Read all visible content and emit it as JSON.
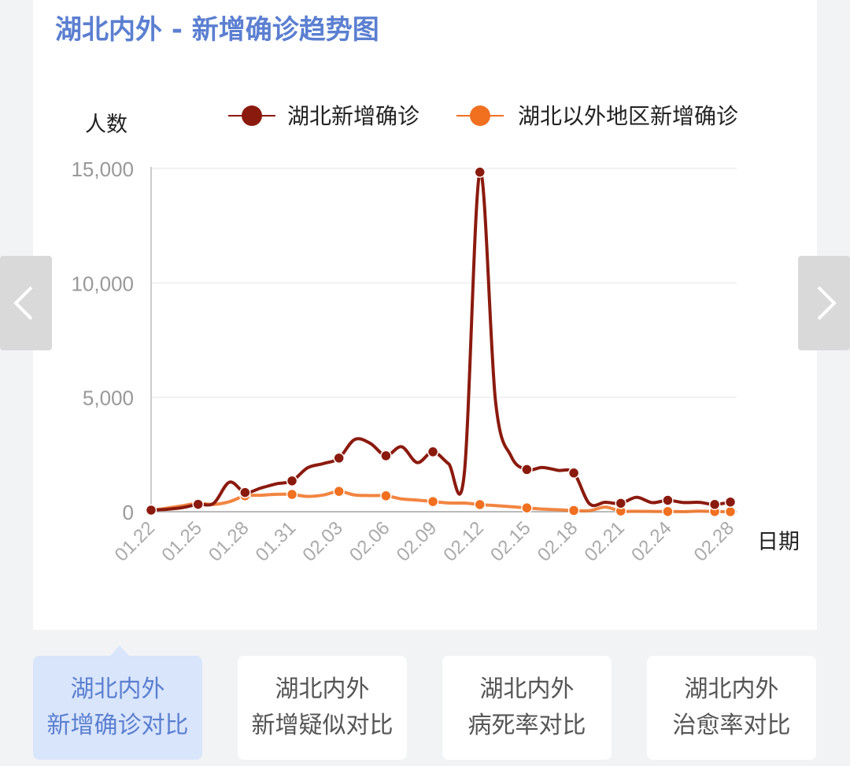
{
  "title": "湖北内外 - 新增确诊趋势图",
  "chart_data": {
    "type": "line",
    "ylabel": "人数",
    "xlabel": "日期",
    "ylim": [
      0,
      15000
    ],
    "yticks": [
      "0",
      "5,000",
      "10,000",
      "15,000"
    ],
    "ytick_values": [
      0,
      5000,
      10000,
      15000
    ],
    "x": [
      "01.22",
      "01.23",
      "01.24",
      "01.25",
      "01.26",
      "01.27",
      "01.28",
      "01.29",
      "01.30",
      "01.31",
      "02.01",
      "02.02",
      "02.03",
      "02.04",
      "02.05",
      "02.06",
      "02.07",
      "02.08",
      "02.09",
      "02.10",
      "02.11",
      "02.12",
      "02.13",
      "02.14",
      "02.15",
      "02.16",
      "02.17",
      "02.18",
      "02.19",
      "02.20",
      "02.21",
      "02.22",
      "02.23",
      "02.24",
      "02.25",
      "02.26",
      "02.27",
      "02.28"
    ],
    "xtick_labels": [
      "01.22",
      "01.25",
      "01.28",
      "01.31",
      "02.03",
      "02.06",
      "02.09",
      "02.12",
      "02.15",
      "02.18",
      "02.21",
      "02.24",
      "02.28"
    ],
    "grid": true,
    "legend_position": "top",
    "series": [
      {
        "name": "湖北新增确诊",
        "color": "#8b1a0e",
        "values": [
          70,
          105,
          180,
          323,
          371,
          1291,
          840,
          1032,
          1220,
          1347,
          1921,
          2103,
          2345,
          3156,
          2987,
          2447,
          2841,
          2147,
          2618,
          2097,
          1638,
          14840,
          4823,
          2420,
          1843,
          1933,
          1807,
          1693,
          349,
          411,
          366,
          630,
          398,
          499,
          401,
          409,
          318,
          423
        ]
      },
      {
        "name": "湖北以外地区新增确诊",
        "color": "#f07020",
        "values": [
          60,
          154,
          259,
          365,
          317,
          437,
          695,
          719,
          762,
          756,
          669,
          729,
          890,
          731,
          707,
          696,
          558,
          509,
          444,
          381,
          377,
          312,
          267,
          221,
          166,
          115,
          86,
          56,
          45,
          200,
          31,
          18,
          11,
          9,
          5,
          24,
          9,
          4
        ]
      }
    ]
  },
  "tabs": [
    {
      "line1": "湖北内外",
      "line2": "新增确诊对比",
      "active": true
    },
    {
      "line1": "湖北内外",
      "line2": "新增疑似对比",
      "active": false
    },
    {
      "line1": "湖北内外",
      "line2": "病死率对比",
      "active": false
    },
    {
      "line1": "湖北内外",
      "line2": "治愈率对比",
      "active": false
    }
  ],
  "icons": {
    "prev": "chevron-left-icon",
    "next": "chevron-right-icon"
  }
}
